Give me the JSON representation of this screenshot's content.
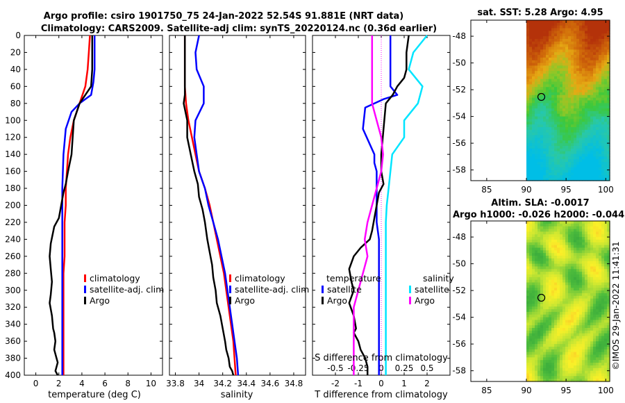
{
  "colors": {
    "climatology": "#ff0000",
    "satellite": "#0000ff",
    "argo": "#000000",
    "argo_salinity_diff": "#ff00ff",
    "satellite_salinity_diff": "#00e5ff",
    "zero_line": "#ff00ff"
  },
  "chart_data": [
    {
      "id": "temperature",
      "type": "line",
      "xlabel": "temperature (deg C)",
      "ylabel": "",
      "xlim": [
        -1,
        11
      ],
      "ylim": [
        400,
        0
      ],
      "xticks": [
        "0",
        "2",
        "4",
        "6",
        "8",
        "10"
      ],
      "xtick_values": [
        0,
        2,
        4,
        6,
        8,
        10
      ],
      "yticks": [
        "0",
        "20",
        "40",
        "60",
        "80",
        "100",
        "120",
        "140",
        "160",
        "180",
        "200",
        "220",
        "240",
        "260",
        "280",
        "300",
        "320",
        "340",
        "360",
        "380",
        "400"
      ],
      "legend": [
        "climatology",
        "satellite-adj. clim",
        "Argo"
      ],
      "series": [
        {
          "name": "climatology",
          "color_key": "climatology",
          "x": [
            4.7,
            4.6,
            4.5,
            4.3,
            3.8,
            3.3,
            3.0,
            2.8,
            2.7,
            2.6,
            2.6,
            2.5,
            2.5,
            2.5,
            2.4,
            2.4,
            2.4,
            2.4,
            2.4,
            2.4,
            2.4
          ],
          "y": [
            0,
            20,
            40,
            60,
            80,
            100,
            120,
            140,
            160,
            180,
            200,
            220,
            240,
            260,
            280,
            300,
            320,
            340,
            360,
            380,
            400
          ]
        },
        {
          "name": "satellite-adj. clim",
          "color_key": "satellite",
          "x": [
            5.1,
            5.1,
            5.1,
            5.0,
            4.8,
            3.8,
            3.1,
            2.6,
            2.4,
            2.3,
            2.3,
            2.3,
            2.3,
            2.3,
            2.3,
            2.3,
            2.3,
            2.3,
            2.3,
            2.3,
            2.3,
            2.3
          ],
          "y": [
            0,
            20,
            40,
            55,
            70,
            80,
            90,
            110,
            140,
            180,
            200,
            220,
            240,
            260,
            280,
            300,
            320,
            340,
            360,
            380,
            390,
            400
          ]
        },
        {
          "name": "Argo",
          "color_key": "argo",
          "x": [
            4.9,
            4.9,
            4.9,
            4.8,
            4.3,
            3.8,
            3.3,
            3.1,
            2.8,
            2.6,
            2.4,
            2.2,
            2.0,
            1.6,
            1.3,
            1.2,
            1.3,
            1.4,
            1.3,
            1.2,
            1.4,
            1.5,
            1.6,
            1.7,
            1.6,
            1.8,
            1.9,
            1.7,
            1.9
          ],
          "y": [
            0,
            20,
            40,
            60,
            70,
            80,
            100,
            140,
            160,
            175,
            185,
            200,
            215,
            225,
            245,
            260,
            275,
            290,
            305,
            315,
            330,
            345,
            350,
            360,
            370,
            380,
            385,
            395,
            400
          ]
        }
      ]
    },
    {
      "id": "salinity",
      "type": "line",
      "xlabel": "salinity",
      "ylabel": "",
      "xlim": [
        33.75,
        34.9
      ],
      "ylim": [
        400,
        0
      ],
      "xticks": [
        "33.8",
        "34",
        "34.2",
        "34.4",
        "34.6",
        "34.8"
      ],
      "xtick_values": [
        33.8,
        34.0,
        34.2,
        34.4,
        34.6,
        34.8
      ],
      "legend": [
        "climatology",
        "satellite-adj. clim",
        "Argo"
      ],
      "series": [
        {
          "name": "climatology",
          "color_key": "climatology",
          "x": [
            33.88,
            33.88,
            33.88,
            33.88,
            33.89,
            33.91,
            33.94,
            33.97,
            34.0,
            34.05,
            34.09,
            34.12,
            34.15,
            34.18,
            34.21,
            34.23,
            34.25,
            34.27,
            34.29,
            34.3,
            34.31
          ],
          "y": [
            0,
            20,
            40,
            60,
            80,
            100,
            120,
            140,
            160,
            180,
            200,
            220,
            240,
            260,
            280,
            300,
            320,
            340,
            360,
            380,
            400
          ]
        },
        {
          "name": "satellite-adj. clim",
          "color_key": "satellite",
          "x": [
            34.0,
            33.97,
            33.98,
            34.04,
            34.04,
            33.97,
            33.96,
            33.98,
            34.0,
            34.05,
            34.08,
            34.12,
            34.16,
            34.19,
            34.22,
            34.24,
            34.26,
            34.28,
            34.3,
            34.32,
            34.33
          ],
          "y": [
            0,
            20,
            40,
            60,
            80,
            100,
            120,
            140,
            160,
            180,
            200,
            220,
            240,
            260,
            280,
            300,
            320,
            340,
            360,
            380,
            400
          ]
        },
        {
          "name": "Argo",
          "color_key": "argo",
          "x": [
            33.88,
            33.88,
            33.88,
            33.88,
            33.88,
            33.87,
            33.9,
            33.9,
            33.93,
            33.96,
            33.99,
            34.0,
            34.03,
            34.05,
            34.07,
            34.09,
            34.11,
            34.12,
            34.14,
            34.15,
            34.18,
            34.2,
            34.22,
            34.23,
            34.25,
            34.26,
            34.28,
            34.29
          ],
          "y": [
            0,
            20,
            40,
            60,
            70,
            80,
            100,
            120,
            140,
            160,
            175,
            190,
            205,
            220,
            240,
            255,
            270,
            285,
            300,
            315,
            330,
            345,
            360,
            370,
            380,
            390,
            395,
            400
          ]
        }
      ]
    },
    {
      "id": "difference",
      "type": "line",
      "xlabel": "T difference from climatology",
      "xlabel_top": "S difference from climatology",
      "xlim": [
        -3,
        3
      ],
      "ylim": [
        400,
        0
      ],
      "xticks": [
        "-2",
        "-1",
        "0",
        "1",
        "2"
      ],
      "xtick_values": [
        -2,
        -1,
        0,
        1,
        2
      ],
      "xticks_s": [
        "-0.5",
        "-0.25",
        "0",
        "0.25",
        "0.5"
      ],
      "xtick_values_s": [
        -0.5,
        -0.25,
        0,
        0.25,
        0.5
      ],
      "legend_temperature_title": "temperature",
      "legend_salinity_title": "salinity",
      "legend": [
        "satellite",
        "Argo",
        "satellite",
        "Argo"
      ],
      "series": [
        {
          "name": "temperature satellite",
          "color_key": "satellite",
          "x": [
            0.4,
            0.4,
            0.4,
            0.4,
            0.7,
            0.1,
            -0.7,
            -0.8,
            -0.3,
            -0.3,
            -0.2,
            -0.2,
            -0.2,
            -0.2,
            -0.1,
            -0.1,
            -0.1,
            -0.1,
            -0.1,
            -0.1,
            -0.1,
            -0.1,
            -0.1,
            -0.1,
            -0.1
          ],
          "y": [
            0,
            20,
            40,
            60,
            70,
            75,
            85,
            110,
            140,
            150,
            160,
            180,
            200,
            220,
            240,
            260,
            280,
            300,
            320,
            340,
            350,
            360,
            370,
            380,
            400
          ]
        },
        {
          "name": "temperature Argo",
          "color_key": "argo",
          "x": [
            1.2,
            1.1,
            1.1,
            1.0,
            0.7,
            0.5,
            0.2,
            0.1,
            0.0,
            0.0,
            0.1,
            -0.1,
            -0.2,
            -0.3,
            -0.4,
            -0.5,
            -0.9,
            -1.2,
            -1.4,
            -1.3,
            -1.2,
            -1.4,
            -1.2,
            -1.1,
            -1.2,
            -1.0,
            -0.9,
            -0.7,
            -0.6,
            -0.6
          ],
          "y": [
            0,
            20,
            40,
            50,
            60,
            70,
            80,
            110,
            140,
            160,
            175,
            185,
            200,
            215,
            230,
            240,
            250,
            260,
            275,
            290,
            300,
            315,
            330,
            345,
            350,
            360,
            370,
            380,
            390,
            400
          ]
        },
        {
          "name": "salinity satellite",
          "color_key": "satellite_salinity_diff",
          "x": [
            0.5,
            0.35,
            0.3,
            0.45,
            0.4,
            0.25,
            0.25,
            0.12,
            0.1,
            0.08,
            0.06,
            0.05,
            0.05,
            0.05,
            0.05,
            0.05,
            0.05,
            0.05,
            0.05,
            0.05,
            0.05,
            0.05,
            0.05,
            0.05
          ],
          "y": [
            0,
            20,
            40,
            60,
            80,
            100,
            120,
            140,
            160,
            180,
            200,
            220,
            240,
            260,
            280,
            300,
            320,
            340,
            360,
            380,
            390,
            395,
            398,
            400
          ]
        },
        {
          "name": "salinity Argo",
          "color_key": "argo_salinity_diff",
          "x": [
            -0.1,
            -0.1,
            -0.1,
            -0.1,
            -0.1,
            -0.05,
            0.0,
            0.02,
            0.0,
            -0.05,
            -0.1,
            -0.15,
            -0.18,
            -0.15,
            -0.2,
            -0.25,
            -0.3,
            -0.3,
            -0.3,
            -0.3,
            -0.3,
            -0.3
          ],
          "y": [
            0,
            20,
            40,
            60,
            80,
            100,
            120,
            140,
            160,
            180,
            200,
            220,
            240,
            260,
            280,
            300,
            320,
            340,
            360,
            380,
            390,
            400
          ]
        }
      ]
    },
    {
      "id": "sst_map",
      "type": "heatmap",
      "title": "sat. SST: 5.28 Argo: 4.95",
      "xlim": [
        83,
        100.5
      ],
      "ylim": [
        -58.8,
        -46.8
      ],
      "xticks": [
        "85",
        "90",
        "95",
        "100"
      ],
      "xtick_values": [
        85,
        90,
        95,
        100
      ],
      "yticks": [
        "-48",
        "-50",
        "-52",
        "-54",
        "-56",
        "-58"
      ],
      "ytick_values": [
        -48,
        -50,
        -52,
        -54,
        -56,
        -58
      ],
      "data_lon_range": [
        90,
        100.5
      ],
      "argo_position": {
        "lon": 91.881,
        "lat": -52.54
      }
    },
    {
      "id": "sla_map",
      "type": "heatmap",
      "title_line1": "Altim. SLA: -0.0017",
      "title_line2": "Argo h1000: -0.026 h2000: -0.044",
      "xlim": [
        83,
        100.5
      ],
      "ylim": [
        -58.8,
        -46.8
      ],
      "xticks": [
        "85",
        "90",
        "95",
        "100"
      ],
      "xtick_values": [
        85,
        90,
        95,
        100
      ],
      "yticks": [
        "-48",
        "-50",
        "-52",
        "-54",
        "-56",
        "-58"
      ],
      "ytick_values": [
        -48,
        -50,
        -52,
        -54,
        -56,
        -58
      ],
      "data_lon_range": [
        90,
        100.5
      ],
      "argo_position": {
        "lon": 91.881,
        "lat": -52.54
      }
    }
  ],
  "figure": {
    "title_line1": "Argo profile: csiro 1901750_75 24-Jan-2022 52.54S 91.881E (NRT data)",
    "title_line2": "Climatology: CARS2009. Satellite-adj clim: synTS_20220124.nc (0.36d earlier)",
    "watermark": "©IMOS 29-Jan-2022 11:41:31"
  }
}
